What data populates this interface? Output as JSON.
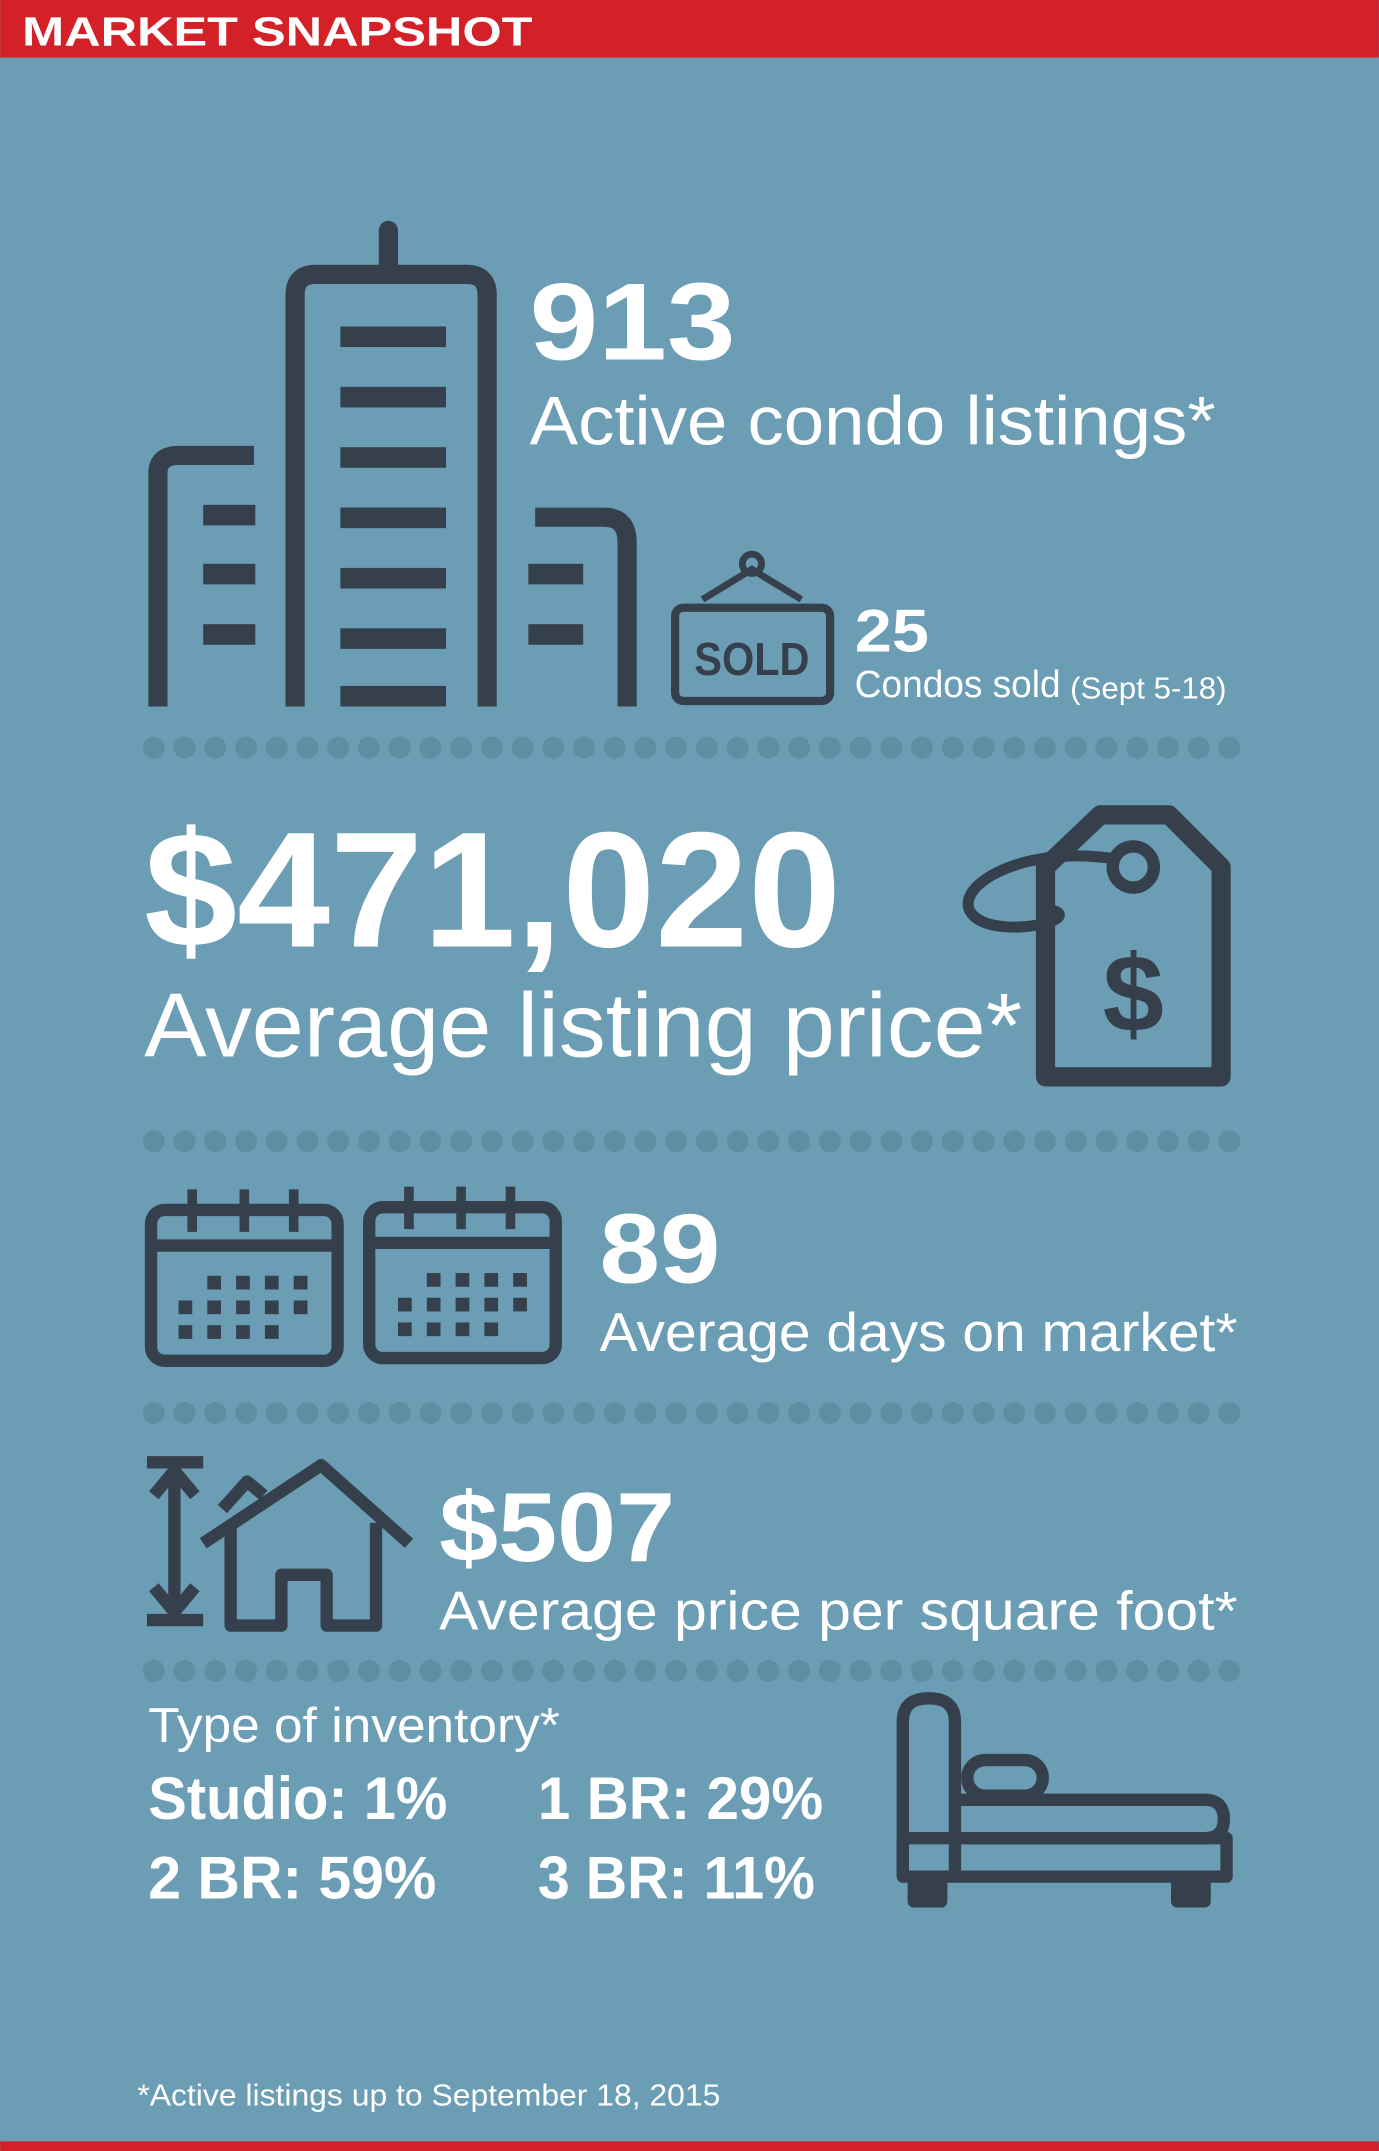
{
  "header": {
    "title": "MARKET SNAPSHOT"
  },
  "listings": {
    "value": "913",
    "label": "Active condo listings*"
  },
  "sold": {
    "sign": "SOLD",
    "value": "25",
    "label": "Condos sold",
    "note": "(Sept 5-18)"
  },
  "price": {
    "value": "$471,020",
    "label": "Average listing price*",
    "icon": "$"
  },
  "days": {
    "value": "89",
    "label": "Average days on market*"
  },
  "sqft": {
    "value": "$507",
    "label": "Average price per square foot*"
  },
  "inventory": {
    "title": "Type of inventory*",
    "items": [
      "Studio: 1%",
      "1 BR: 29%",
      "2 BR: 59%",
      "3 BR: 11%"
    ]
  },
  "footnote": "*Active listings up to September 18, 2015"
}
